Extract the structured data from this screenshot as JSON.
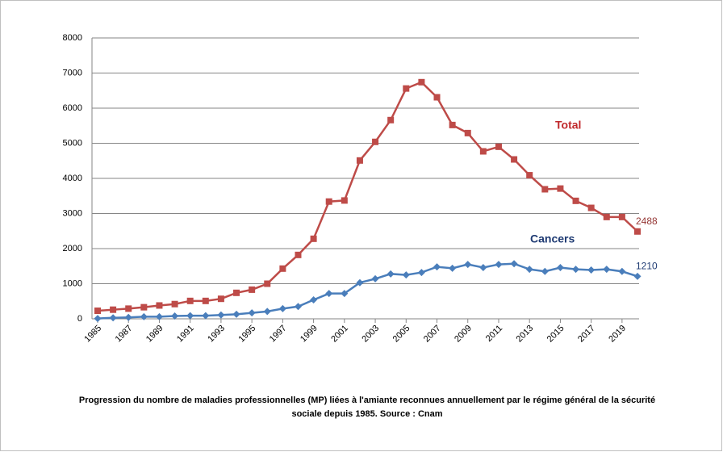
{
  "chart_data": {
    "type": "line",
    "caption": "Progression du nombre de maladies professionnelles (MP) liées à l'amiante reconnues annuellement par le régime général de la sécurité sociale depuis 1985. Source : Cnam",
    "x": [
      1985,
      1986,
      1987,
      1988,
      1989,
      1990,
      1991,
      1992,
      1993,
      1994,
      1995,
      1996,
      1997,
      1998,
      1999,
      2000,
      2001,
      2002,
      2003,
      2004,
      2005,
      2006,
      2007,
      2008,
      2009,
      2010,
      2011,
      2012,
      2013,
      2014,
      2015,
      2016,
      2017,
      2018,
      2019,
      2020
    ],
    "xlim": [
      1985,
      2020
    ],
    "xticks": [
      1985,
      1987,
      1989,
      1991,
      1993,
      1995,
      1997,
      1999,
      2001,
      2003,
      2005,
      2007,
      2009,
      2011,
      2013,
      2015,
      2017,
      2019
    ],
    "ylim": [
      0,
      8000
    ],
    "yticks": [
      0,
      1000,
      2000,
      3000,
      4000,
      5000,
      6000,
      7000,
      8000
    ],
    "grid": true,
    "series": [
      {
        "name": "Total",
        "color": "#be4b48",
        "marker": "square",
        "values": [
          230,
          260,
          290,
          330,
          380,
          420,
          510,
          510,
          570,
          740,
          830,
          1000,
          1430,
          1820,
          2280,
          3340,
          3370,
          4510,
          5040,
          5660,
          6560,
          6740,
          6310,
          5520,
          5290,
          4770,
          4900,
          4540,
          4090,
          3690,
          3710,
          3360,
          3160,
          2900,
          2900,
          2488
        ]
      },
      {
        "name": "Cancers",
        "color": "#4a7ebb",
        "marker": "diamond",
        "values": [
          10,
          30,
          40,
          60,
          60,
          80,
          90,
          90,
          110,
          130,
          170,
          210,
          290,
          350,
          540,
          720,
          720,
          1030,
          1140,
          1280,
          1250,
          1320,
          1480,
          1440,
          1550,
          1460,
          1550,
          1570,
          1410,
          1350,
          1460,
          1410,
          1390,
          1410,
          1350,
          1210
        ]
      }
    ]
  }
}
